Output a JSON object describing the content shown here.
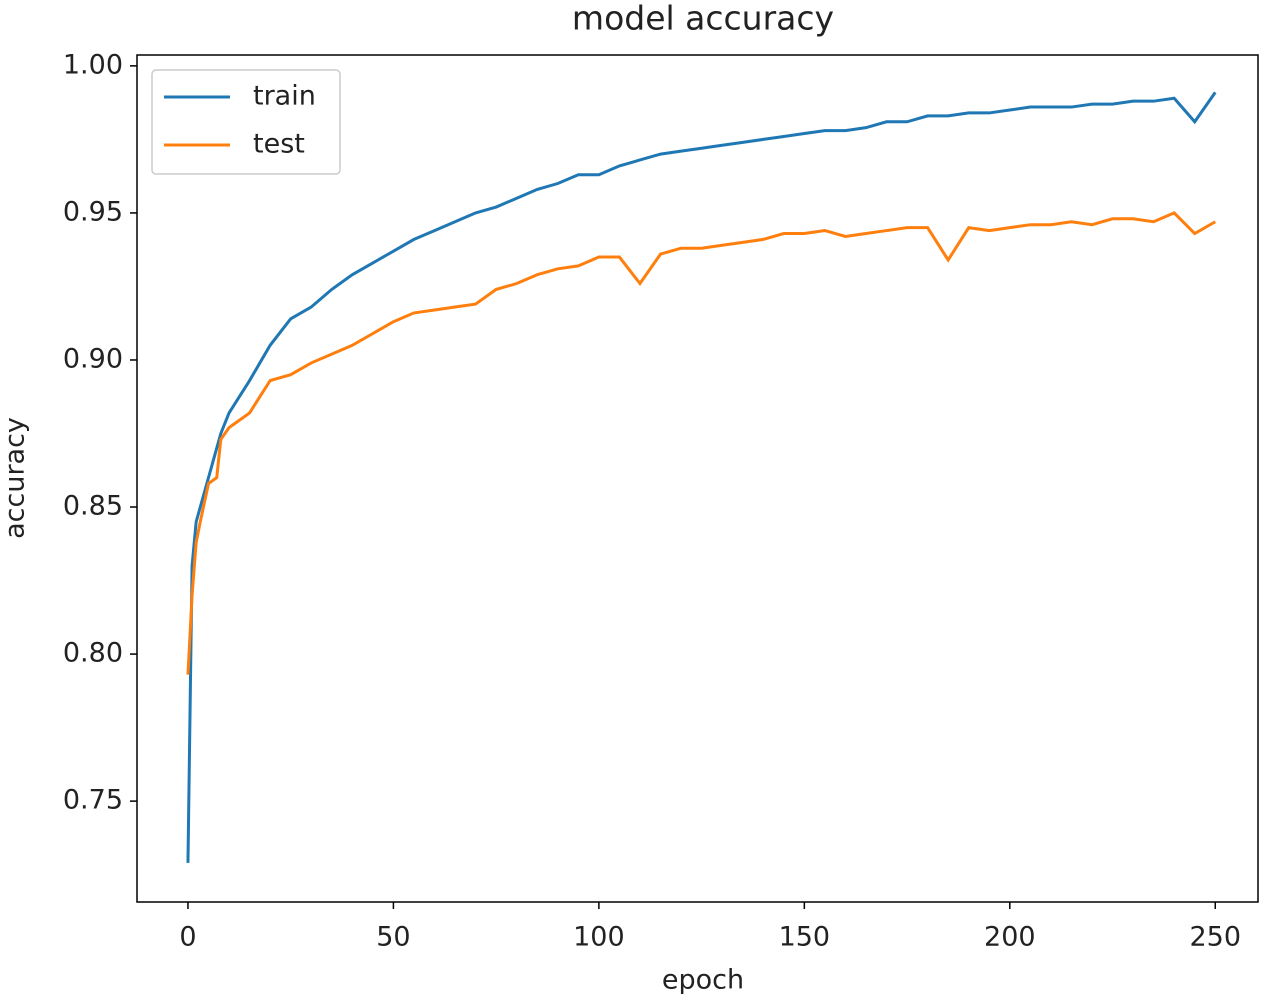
{
  "chart_data": {
    "type": "line",
    "title": "model accuracy",
    "xlabel": "epoch",
    "ylabel": "accuracy",
    "x": [
      0,
      1,
      2,
      3,
      5,
      7,
      8,
      10,
      15,
      20,
      25,
      30,
      35,
      40,
      45,
      50,
      55,
      60,
      65,
      70,
      75,
      80,
      85,
      90,
      95,
      100,
      105,
      110,
      115,
      120,
      125,
      130,
      135,
      140,
      145,
      150,
      155,
      160,
      165,
      170,
      175,
      180,
      185,
      190,
      195,
      200,
      205,
      210,
      215,
      220,
      225,
      230,
      235,
      240,
      245,
      250
    ],
    "series": [
      {
        "name": "train",
        "color": "#1f77b4",
        "values": [
          0.729,
          0.83,
          0.845,
          0.85,
          0.86,
          0.87,
          0.875,
          0.882,
          0.893,
          0.905,
          0.914,
          0.918,
          0.924,
          0.929,
          0.933,
          0.937,
          0.941,
          0.944,
          0.947,
          0.95,
          0.952,
          0.955,
          0.958,
          0.96,
          0.963,
          0.963,
          0.966,
          0.968,
          0.97,
          0.971,
          0.972,
          0.973,
          0.974,
          0.975,
          0.976,
          0.977,
          0.978,
          0.978,
          0.979,
          0.981,
          0.981,
          0.983,
          0.983,
          0.984,
          0.984,
          0.985,
          0.986,
          0.986,
          0.986,
          0.987,
          0.987,
          0.988,
          0.988,
          0.989,
          0.981,
          0.991
        ]
      },
      {
        "name": "test",
        "color": "#ff7f0e",
        "values": [
          0.793,
          0.82,
          0.838,
          0.845,
          0.858,
          0.86,
          0.873,
          0.877,
          0.882,
          0.893,
          0.895,
          0.899,
          0.902,
          0.905,
          0.909,
          0.913,
          0.916,
          0.917,
          0.918,
          0.919,
          0.924,
          0.926,
          0.929,
          0.931,
          0.932,
          0.935,
          0.935,
          0.926,
          0.936,
          0.938,
          0.938,
          0.939,
          0.94,
          0.941,
          0.943,
          0.943,
          0.944,
          0.942,
          0.943,
          0.944,
          0.945,
          0.945,
          0.934,
          0.945,
          0.944,
          0.945,
          0.946,
          0.946,
          0.947,
          0.946,
          0.948,
          0.948,
          0.947,
          0.95,
          0.943,
          0.947
        ]
      }
    ],
    "xlim": [
      -12.4,
      260.4
    ],
    "xticks": [
      0,
      50,
      100,
      150,
      200,
      250
    ],
    "ylim": [
      0.7157,
      1.0037
    ],
    "yticks": [
      0.75,
      {
        "value": 0.8,
        "label": "0.80"
      },
      0.85,
      {
        "value": 0.9,
        "label": "0.90"
      },
      0.95,
      {
        "value": 1.0,
        "label": "1.00"
      }
    ],
    "legend": "upper left"
  }
}
